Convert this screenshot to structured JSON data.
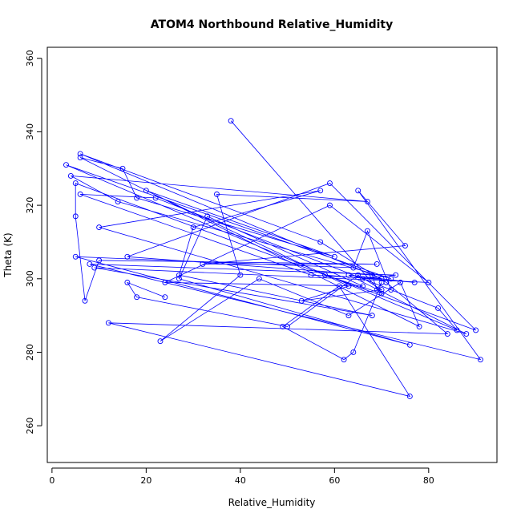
{
  "chart_data": {
    "type": "line",
    "title": "ATOM4 Northbound Relative_Humidity",
    "xlabel": "Relative_Humidity",
    "ylabel": "Theta (K)",
    "xlim": [
      -1,
      94.5
    ],
    "ylim": [
      250,
      363
    ],
    "xticks": [
      0,
      20,
      40,
      60,
      80
    ],
    "yticks": [
      260,
      280,
      300,
      320,
      340,
      360
    ],
    "grid": false,
    "legend": "none",
    "color": "#0000ff",
    "series": [
      {
        "x": [
          38,
          70,
          58,
          77,
          63,
          88,
          10,
          57,
          30,
          27,
          68,
          9,
          80,
          59,
          24,
          66,
          33,
          27,
          76,
          5,
          64,
          67,
          72,
          22,
          6,
          55,
          70,
          6,
          57,
          71,
          84,
          12,
          76,
          61,
          49,
          62,
          64,
          70,
          69,
          68,
          16,
          59,
          90,
          5,
          5,
          7,
          10,
          69,
          32,
          75,
          65,
          91,
          8,
          73,
          66,
          82,
          86,
          3,
          72,
          14,
          4,
          67,
          35,
          40,
          23,
          44,
          63,
          74,
          78,
          6,
          15,
          18,
          60,
          20,
          63,
          53,
          70,
          65,
          50,
          18,
          16,
          24
        ],
        "y": [
          343,
          296,
          301,
          299,
          301,
          285,
          314,
          324,
          314,
          301,
          290,
          303,
          299,
          320,
          299,
          298,
          317,
          300,
          282,
          306,
          303,
          313,
          297,
          322,
          323,
          301,
          300,
          334,
          310,
          299,
          285,
          288,
          268,
          298,
          287,
          278,
          280,
          299,
          297,
          301,
          306,
          326,
          286,
          326,
          317,
          294,
          305,
          304,
          304,
          309,
          324,
          278,
          304,
          301,
          300,
          292,
          286,
          331,
          300,
          321,
          328,
          321,
          323,
          301,
          283,
          300,
          290,
          299,
          287,
          333,
          330,
          322,
          306,
          324,
          298,
          294,
          297,
          301,
          287,
          295,
          299,
          295
        ]
      }
    ]
  }
}
